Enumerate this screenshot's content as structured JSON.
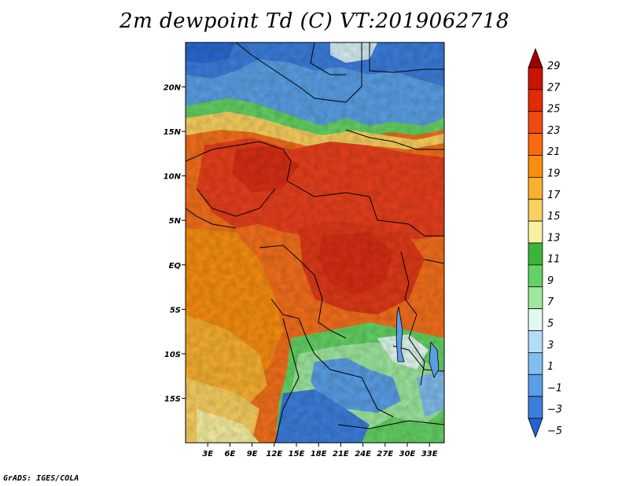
{
  "title": "2m dewpoint Td (C) VT:2019062718",
  "credit": "GrADS: IGES/COLA",
  "map": {
    "lon_range": [
      0,
      35
    ],
    "lat_range": [
      -20,
      25
    ],
    "y_ticks": [
      {
        "lat": 20,
        "label": "20N"
      },
      {
        "lat": 15,
        "label": "15N"
      },
      {
        "lat": 10,
        "label": "10N"
      },
      {
        "lat": 5,
        "label": "5N"
      },
      {
        "lat": 0,
        "label": "EQ"
      },
      {
        "lat": -5,
        "label": "5S"
      },
      {
        "lat": -10,
        "label": "10S"
      },
      {
        "lat": -15,
        "label": "15S"
      }
    ],
    "x_ticks": [
      {
        "lon": 3,
        "label": "3E"
      },
      {
        "lon": 6,
        "label": "6E"
      },
      {
        "lon": 9,
        "label": "9E"
      },
      {
        "lon": 12,
        "label": "12E"
      },
      {
        "lon": 15,
        "label": "15E"
      },
      {
        "lon": 18,
        "label": "18E"
      },
      {
        "lon": 21,
        "label": "21E"
      },
      {
        "lon": 24,
        "label": "24E"
      },
      {
        "lon": 27,
        "label": "27E"
      },
      {
        "lon": 30,
        "label": "30E"
      },
      {
        "lon": 33,
        "label": "33E"
      }
    ]
  },
  "colorbar": {
    "labels": [
      "29",
      "27",
      "25",
      "23",
      "21",
      "19",
      "17",
      "15",
      "13",
      "11",
      "9",
      "7",
      "5",
      "3",
      "1",
      "-1",
      "-3",
      "-5"
    ],
    "colors_top_to_bottom": [
      "#a00000",
      "#c81400",
      "#e02c00",
      "#f04a10",
      "#f86a10",
      "#f88e10",
      "#f8b030",
      "#f8d060",
      "#f8f0a0",
      "#3cb43c",
      "#64d264",
      "#9ee89e",
      "#e0f8f0",
      "#b4dcf8",
      "#82beee",
      "#5a9ee6",
      "#3c7edc",
      "#2064d0"
    ]
  }
}
